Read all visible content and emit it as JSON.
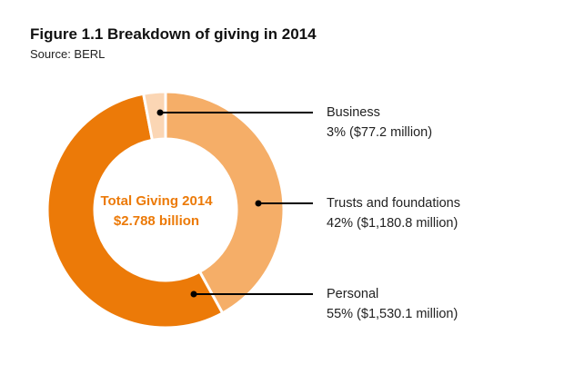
{
  "chart_data": {
    "type": "pie",
    "title": "Figure 1.1 Breakdown of giving in 2014",
    "subtitle": "Source: BERL",
    "center_label": [
      "Total Giving 2014",
      "$2.788 billion"
    ],
    "slices": [
      {
        "name": "Business",
        "percent": 3,
        "value_label": "3% ($77.2 million)",
        "amount_millions": 77.2,
        "color": "#fbd6b4"
      },
      {
        "name": "Trusts and foundations",
        "percent": 42,
        "value_label": "42% ($1,180.8 million)",
        "amount_millions": 1180.8,
        "color": "#f5ae68"
      },
      {
        "name": "Personal",
        "percent": 55,
        "value_label": "55% ($1,530.1 million)",
        "amount_millions": 1530.1,
        "color": "#ec7a08"
      }
    ]
  },
  "colors": {
    "center_text": "#ec7a08"
  }
}
